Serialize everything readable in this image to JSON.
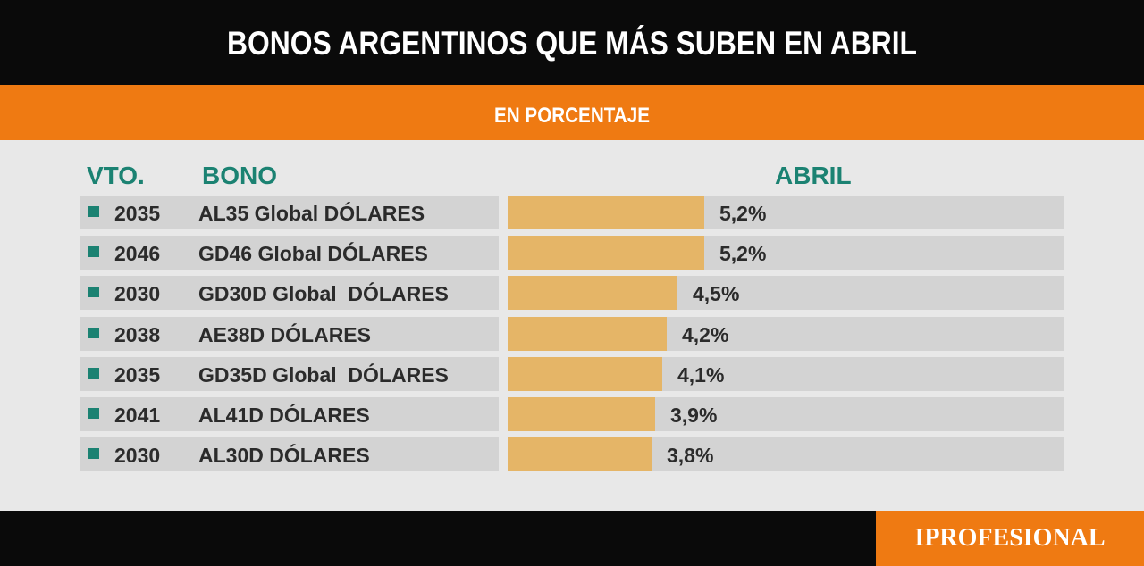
{
  "title": "BONOS ARGENTINOS QUE MÁS SUBEN EN ABRIL",
  "subtitle": "EN PORCENTAJE",
  "headers": {
    "vto": "VTO.",
    "bono": "BONO",
    "abril": "ABRIL"
  },
  "logo": "IPROFESIONAL",
  "colors": {
    "header_bg": "#0a0a0a",
    "accent": "#ef7a12",
    "header_text": "#1b8272",
    "bar": "#e5b567",
    "row_bg": "#d3d3d3"
  },
  "chart_data": {
    "type": "bar",
    "orientation": "horizontal",
    "title": "BONOS ARGENTINOS QUE MÁS SUBEN EN ABRIL",
    "subtitle": "EN PORCENTAJE",
    "columns": [
      "VTO.",
      "BONO",
      "ABRIL"
    ],
    "xlim": [
      0,
      5.2
    ],
    "rows": [
      {
        "vto": "2035",
        "bono": "AL35 Global DÓLARES",
        "value": 5.2,
        "label": "5,2%"
      },
      {
        "vto": "2046",
        "bono": "GD46 Global DÓLARES",
        "value": 5.2,
        "label": "5,2%"
      },
      {
        "vto": "2030",
        "bono": "GD30D Global  DÓLARES",
        "value": 4.5,
        "label": "4,5%"
      },
      {
        "vto": "2038",
        "bono": "AE38D DÓLARES",
        "value": 4.2,
        "label": "4,2%"
      },
      {
        "vto": "2035",
        "bono": "GD35D Global  DÓLARES",
        "value": 4.1,
        "label": "4,1%"
      },
      {
        "vto": "2041",
        "bono": "AL41D DÓLARES",
        "value": 3.9,
        "label": "3,9%"
      },
      {
        "vto": "2030",
        "bono": "AL30D DÓLARES",
        "value": 3.8,
        "label": "3,8%"
      }
    ]
  }
}
